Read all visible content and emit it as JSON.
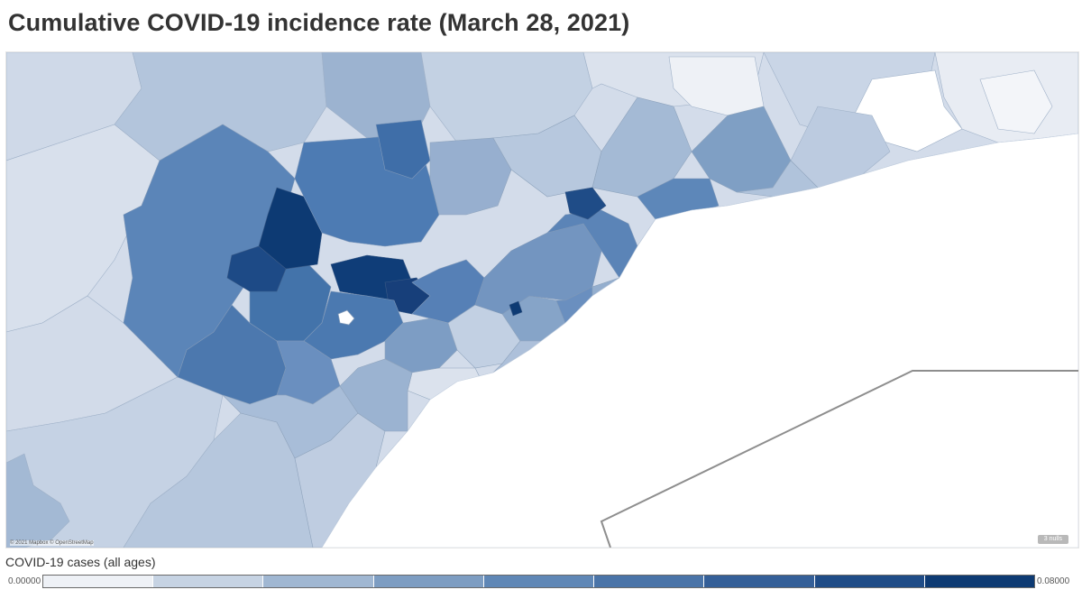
{
  "title": "Cumulative COVID-19 incidence rate (March 28, 2021)",
  "map": {
    "attribution": "© 2021 Mapbox © OpenStreetMap",
    "nulls_badge": "3 nulls",
    "colors": {
      "water": "#ffffff",
      "boundary": "#8e8e8e",
      "region_border": "#8fa4bd",
      "darkest": "#08306b"
    }
  },
  "legend": {
    "title": "COVID-19 cases (all ages)",
    "min_label": "0.00000",
    "max_label": "0.08000",
    "colors": [
      "#eef1f6",
      "#c6d3e3",
      "#a0b7d2",
      "#7d9dc2",
      "#5f87b6",
      "#4a74a8",
      "#345f98",
      "#1f4c87",
      "#0d3a73"
    ]
  }
}
